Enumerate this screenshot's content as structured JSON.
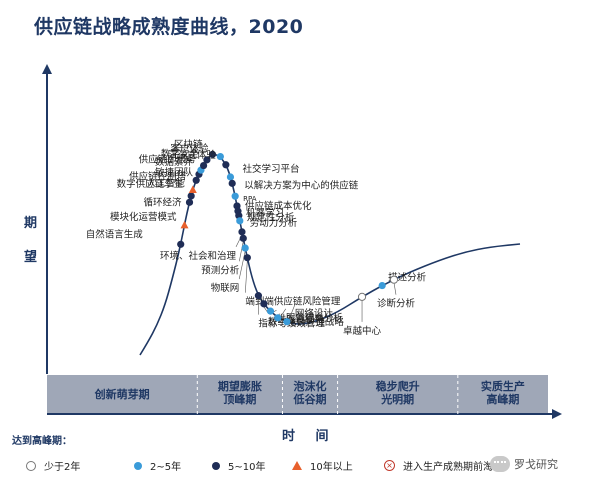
{
  "chart_data": {
    "type": "line",
    "title": "供应链战略成熟度曲线，2020",
    "ylabel": "期望",
    "xlabel": "时 间",
    "phases": [
      {
        "label_lines": [
          "创新萌芽期"
        ],
        "x_range": [
          0,
          30
        ]
      },
      {
        "label_lines": [
          "期望膨胀",
          "顶峰期"
        ],
        "x_range": [
          30,
          47
        ]
      },
      {
        "label_lines": [
          "泡沫化",
          "低谷期"
        ],
        "x_range": [
          47,
          58
        ]
      },
      {
        "label_lines": [
          "稳步爬升",
          "光明期"
        ],
        "x_range": [
          58,
          82
        ]
      },
      {
        "label_lines": [
          "实质生产",
          "高峰期"
        ],
        "x_range": [
          82,
          100
        ]
      }
    ],
    "legend": {
      "title": "达到高峰期：",
      "items": [
        {
          "label": "少于2年",
          "marker": "hollow-circle",
          "color": "#ffffff"
        },
        {
          "label": "2~5年",
          "marker": "circle",
          "color": "#3a9bd9"
        },
        {
          "label": "5~10年",
          "marker": "circle",
          "color": "#1f2d56"
        },
        {
          "label": "10年以上",
          "marker": "triangle",
          "color": "#e8602c"
        },
        {
          "label": "进入生产成熟期前淘汰",
          "marker": "x-circle",
          "color": "#c0392b"
        }
      ]
    },
    "points": [
      {
        "label": "自然语言生成",
        "t": 0.18,
        "category": "5~10年",
        "marker": "circle",
        "color": "#1f2d56"
      },
      {
        "label": "模块化运营模式",
        "t": 0.21,
        "category": "10年以上",
        "marker": "triangle",
        "color": "#e8602c"
      },
      {
        "label": "循环经济",
        "t": 0.245,
        "category": "5~10年",
        "marker": "circle",
        "color": "#1f2d56"
      },
      {
        "label": "数字供应链孪生",
        "t": 0.255,
        "category": "5~10年",
        "marker": "circle",
        "color": "#1f2d56"
      },
      {
        "label": "人工智能",
        "t": 0.265,
        "category": "10年以上",
        "marker": "triangle",
        "color": "#e8602c"
      },
      {
        "label": "供应链控制塔",
        "t": 0.28,
        "category": "5~10年",
        "marker": "circle",
        "color": "#1f2d56"
      },
      {
        "label": "敏捷团队",
        "t": 0.29,
        "category": "5~10年",
        "marker": "circle",
        "color": "#1f2d56"
      },
      {
        "label": "数据素养",
        "t": 0.297,
        "category": "2~5年",
        "marker": "circle",
        "color": "#3a9bd9"
      },
      {
        "label": "供应链即服务",
        "t": 0.305,
        "category": "5~10年",
        "marker": "circle",
        "color": "#1f2d56"
      },
      {
        "label": "数字安全",
        "t": 0.315,
        "category": "5~10年",
        "marker": "circle",
        "color": "#1f2d56"
      },
      {
        "label": "区块链",
        "t": 0.327,
        "category": "5~10年",
        "marker": "circle",
        "color": "#1f2d56"
      },
      {
        "label": "客户体验",
        "t": 0.34,
        "category": "2~5年",
        "marker": "circle",
        "color": "#3a9bd9"
      },
      {
        "label": "沉浸式体验",
        "t": 0.355,
        "category": "5~10年",
        "marker": "circle",
        "color": "#1f2d56"
      },
      {
        "label": "社交学习平台",
        "t": 0.375,
        "category": "2~5年",
        "marker": "circle",
        "color": "#3a9bd9"
      },
      {
        "label": "以解决方案为中心的供应链",
        "t": 0.385,
        "category": "5~10年",
        "marker": "circle",
        "color": "#1f2d56"
      },
      {
        "label": "RPA",
        "t": 0.405,
        "category": "2~5年",
        "marker": "circle",
        "color": "#3a9bd9"
      },
      {
        "label": "供应链成本优化",
        "t": 0.42,
        "category": "5~10年",
        "marker": "circle",
        "color": "#1f2d56"
      },
      {
        "label": "机器学习",
        "t": 0.428,
        "category": "5~10年",
        "marker": "circle",
        "color": "#1f2d56"
      },
      {
        "label": "规定性分析",
        "t": 0.435,
        "category": "5~10年",
        "marker": "circle",
        "color": "#1f2d56"
      },
      {
        "label": "劳动力分析",
        "t": 0.443,
        "category": "2~5年",
        "marker": "circle",
        "color": "#3a9bd9"
      },
      {
        "label": "环境、社会和治理",
        "t": 0.46,
        "category": "5~10年",
        "marker": "circle",
        "color": "#1f2d56"
      },
      {
        "label": "预测分析",
        "t": 0.47,
        "category": "5~10年",
        "marker": "circle",
        "color": "#1f2d56"
      },
      {
        "label": "物联网",
        "t": 0.485,
        "category": "2~5年",
        "marker": "circle",
        "color": "#3a9bd9"
      },
      {
        "label": "端到端供应链风险管理",
        "t": 0.5,
        "category": "5~10年",
        "marker": "circle",
        "color": "#1f2d56"
      },
      {
        "label": "指标与绩效管理",
        "t": 0.56,
        "category": "5~10年",
        "marker": "circle",
        "color": "#1f2d56"
      },
      {
        "label": "数字化供应链战略",
        "t": 0.575,
        "category": "5~10年",
        "marker": "circle",
        "color": "#1f2d56"
      },
      {
        "label": "供应链细分",
        "t": 0.59,
        "category": "2~5年",
        "marker": "circle",
        "color": "#3a9bd9"
      },
      {
        "label": "服务成本分析",
        "t": 0.605,
        "category": "2~5年",
        "marker": "circle",
        "color": "#3a9bd9"
      },
      {
        "label": "网络设计",
        "t": 0.62,
        "category": "2~5年",
        "marker": "circle",
        "color": "#3a9bd9"
      },
      {
        "label": "卓越中心",
        "t": 0.745,
        "category": "少于2年",
        "marker": "hollow-circle",
        "color": "#ffffff"
      },
      {
        "label": "描述分析",
        "t": 0.78,
        "category": "2~5年",
        "marker": "circle",
        "color": "#3a9bd9"
      },
      {
        "label": "诊断分析",
        "t": 0.8,
        "category": "少于2年",
        "marker": "hollow-circle",
        "color": "#ffffff"
      }
    ]
  },
  "watermark": {
    "text": "罗戈研究",
    "icon": "wechat-icon"
  }
}
